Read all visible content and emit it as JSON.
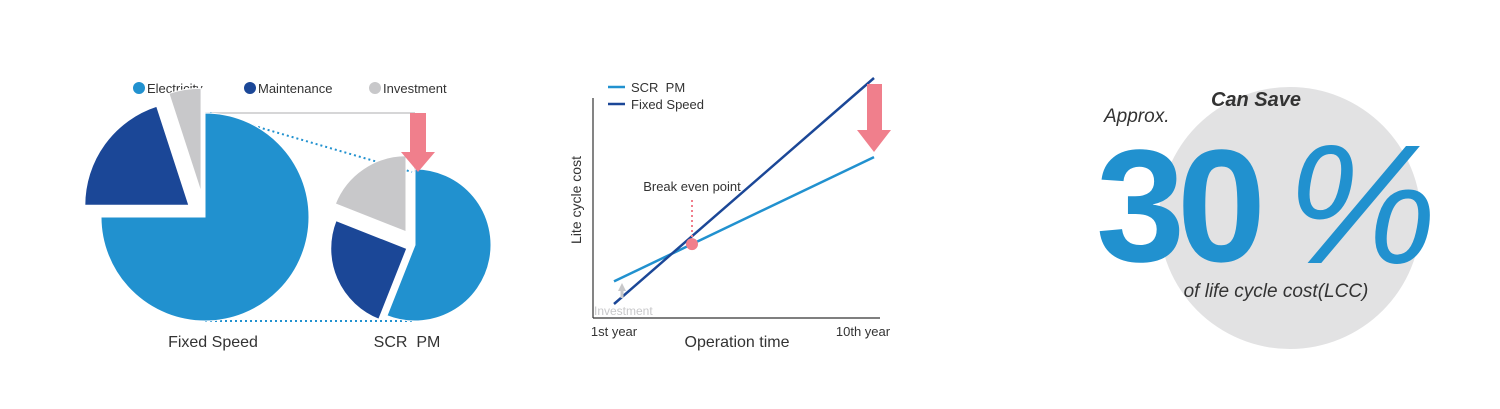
{
  "colors": {
    "electricity": "#2191CF",
    "maintenance": "#1B4797",
    "investment": "#C8C8CA",
    "arrow": "#F07F8C",
    "scr_line": "#2191CF",
    "fixed_line": "#1B4797",
    "text": "#333333",
    "circle_bg": "#E2E2E3",
    "percent": "#2191CF"
  },
  "chart_data": [
    {
      "type": "pie",
      "legend": [
        "Electricity",
        "Maintenance",
        "Investment"
      ],
      "legend_placement": "top",
      "pies": [
        {
          "label": "Fixed Speed",
          "slices": [
            {
              "name": "Electricity",
              "value": 75
            },
            {
              "name": "Maintenance",
              "value": 20
            },
            {
              "name": "Investment",
              "value": 5
            }
          ]
        },
        {
          "label": "SCR  PM",
          "slices": [
            {
              "name": "Electricity",
              "value": 56
            },
            {
              "name": "Maintenance",
              "value": 25
            },
            {
              "name": "Investment",
              "value": 19
            }
          ]
        }
      ]
    },
    {
      "type": "line",
      "xlabel": "Operation time",
      "ylabel": "Lite cycle cost",
      "x_ticks": [
        "1st year",
        "10th year"
      ],
      "x": [
        1,
        10
      ],
      "xlim": [
        1,
        10
      ],
      "ylim": [
        0,
        100
      ],
      "legend_placement": "top-left",
      "series": [
        {
          "name": "SCR  PM",
          "values": [
            10,
            65
          ]
        },
        {
          "name": "Fixed Speed",
          "values": [
            0,
            100
          ]
        }
      ],
      "annotations": {
        "break_even_label": "Break even point",
        "break_even": {
          "x": 3.7,
          "y": 26.5
        },
        "investment_label": "Investment"
      }
    }
  ],
  "saving": {
    "top_label": "Can Save",
    "approx_label": "Approx.",
    "value": "30",
    "unit": "%",
    "bottom_label": "of life cycle cost(LCC)"
  }
}
